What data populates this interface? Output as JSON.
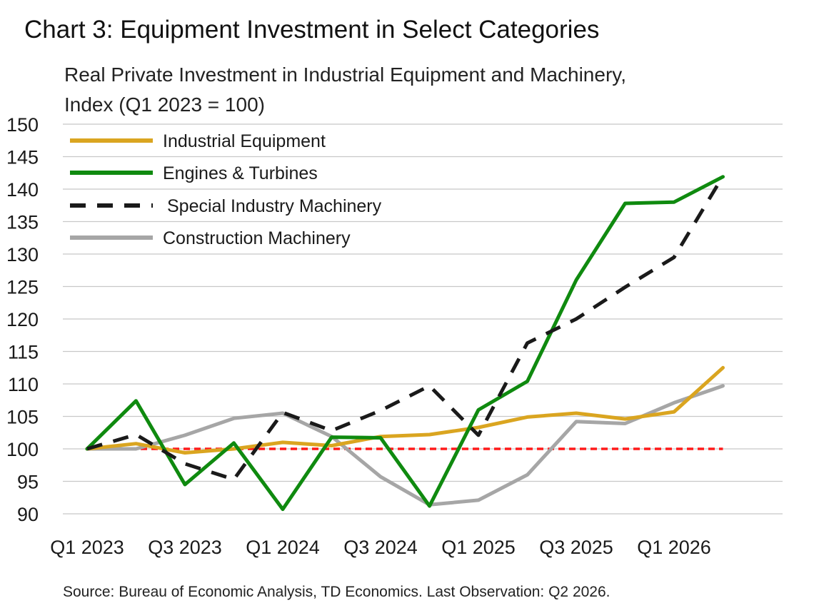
{
  "title": "Chart 3: Equipment Investment in Select Categories",
  "subtitle_line1": "Real Private Investment in Industrial Equipment and Machinery,",
  "subtitle_line2": "Index (Q1 2023 = 100)",
  "source": "Source: Bureau of Economic Analysis, TD Economics. Last Observation: Q2 2026.",
  "chart_data": {
    "type": "line",
    "x": [
      "Q1 2023",
      "Q2 2023",
      "Q3 2023",
      "Q4 2023",
      "Q1 2024",
      "Q2 2024",
      "Q3 2024",
      "Q4 2024",
      "Q1 2025",
      "Q2 2025",
      "Q3 2025",
      "Q4 2025",
      "Q1 2026",
      "Q2 2026"
    ],
    "x_tick_labels": [
      "Q1 2023",
      "Q3 2023",
      "Q1 2024",
      "Q3 2024",
      "Q1 2025",
      "Q3 2025",
      "Q1 2026"
    ],
    "ylim": [
      90,
      150
    ],
    "y_ticks": [
      90,
      95,
      100,
      105,
      110,
      115,
      120,
      125,
      130,
      135,
      140,
      145,
      150
    ],
    "grid": true,
    "legend_position": "top-left",
    "series": [
      {
        "name": "Industrial Equipment",
        "color": "#DAA520",
        "dash": "solid",
        "values": [
          100,
          100.8,
          99.4,
          100,
          101,
          100.5,
          101.9,
          102.2,
          103.3,
          104.9,
          105.5,
          104.6,
          105.7,
          112.5
        ]
      },
      {
        "name": "Engines & Turbines",
        "color": "#0F8A0F",
        "dash": "solid",
        "values": [
          100,
          107.4,
          94.5,
          100.9,
          90.7,
          101.8,
          101.7,
          91.2,
          106,
          110.4,
          126,
          137.8,
          138,
          141.9
        ]
      },
      {
        "name": "Special Industry Machinery",
        "color": "#1a1a1a",
        "dash": "dashed",
        "values": [
          100,
          102.2,
          97.7,
          95.3,
          105.6,
          102.8,
          105.9,
          109.7,
          102.1,
          116.3,
          120,
          124.9,
          129.5,
          142
        ]
      },
      {
        "name": "Construction Machinery",
        "color": "#A6A6A6",
        "dash": "solid",
        "values": [
          100,
          100,
          102.1,
          104.7,
          105.5,
          101.9,
          95.7,
          91.4,
          92.1,
          96,
          104.2,
          103.9,
          107.1,
          109.7
        ]
      }
    ],
    "reference_line": {
      "y": 100,
      "color": "#FF1A1A",
      "dash": "dashed"
    }
  }
}
